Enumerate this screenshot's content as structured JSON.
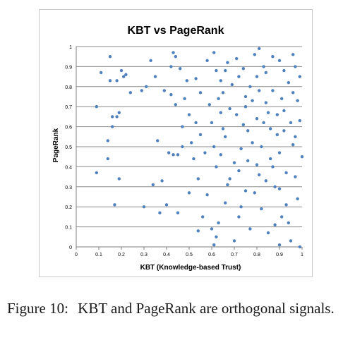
{
  "figure": {
    "caption_label": "Figure 10:",
    "caption_text": "KBT and PageRank are orthogonal signals."
  },
  "chart_data": {
    "type": "scatter",
    "title": "KBT vs PageRank",
    "xlabel": "KBT (Knowledge-based Trust)",
    "ylabel": "PageRank",
    "xlim": [
      0,
      1
    ],
    "ylim": [
      0,
      1
    ],
    "xticks": [
      "0",
      "0.1",
      "0.2",
      "0.3",
      "0.4",
      "0.5",
      "0.6",
      "0.7",
      "0.8",
      "0.9",
      "1"
    ],
    "yticks": [
      "0",
      "0.1",
      "0.2",
      "0.3",
      "0.4",
      "0.5",
      "0.6",
      "0.7",
      "0.8",
      "0.9",
      "1"
    ],
    "grid": "horizontal",
    "legend": "none",
    "marker_color": "#4f81bd",
    "points": [
      [
        0.09,
        0.7
      ],
      [
        0.09,
        0.37
      ],
      [
        0.11,
        0.87
      ],
      [
        0.14,
        0.53
      ],
      [
        0.14,
        0.44
      ],
      [
        0.15,
        0.95
      ],
      [
        0.15,
        0.83
      ],
      [
        0.16,
        0.65
      ],
      [
        0.16,
        0.6
      ],
      [
        0.17,
        0.21
      ],
      [
        0.18,
        0.83
      ],
      [
        0.18,
        0.65
      ],
      [
        0.19,
        0.67
      ],
      [
        0.19,
        0.34
      ],
      [
        0.2,
        0.88
      ],
      [
        0.21,
        0.85
      ],
      [
        0.22,
        0.86
      ],
      [
        0.24,
        0.77
      ],
      [
        0.29,
        0.78
      ],
      [
        0.3,
        0.2
      ],
      [
        0.31,
        0.8
      ],
      [
        0.33,
        0.93
      ],
      [
        0.34,
        0.31
      ],
      [
        0.35,
        0.85
      ],
      [
        0.36,
        0.53
      ],
      [
        0.37,
        0.17
      ],
      [
        0.38,
        0.33
      ],
      [
        0.39,
        0.78
      ],
      [
        0.4,
        0.21
      ],
      [
        0.41,
        0.47
      ],
      [
        0.42,
        0.9
      ],
      [
        0.42,
        0.76
      ],
      [
        0.43,
        0.97
      ],
      [
        0.43,
        0.46
      ],
      [
        0.44,
        0.95
      ],
      [
        0.44,
        0.71
      ],
      [
        0.45,
        0.46
      ],
      [
        0.45,
        0.17
      ],
      [
        0.46,
        0.89
      ],
      [
        0.47,
        0.6
      ],
      [
        0.47,
        0.5
      ],
      [
        0.48,
        0.74
      ],
      [
        0.49,
        0.83
      ],
      [
        0.5,
        0.66
      ],
      [
        0.5,
        0.27
      ],
      [
        0.51,
        0.52
      ],
      [
        0.52,
        0.44
      ],
      [
        0.53,
        0.84
      ],
      [
        0.53,
        0.62
      ],
      [
        0.54,
        0.34
      ],
      [
        0.54,
        0.08
      ],
      [
        0.55,
        0.77
      ],
      [
        0.55,
        0.56
      ],
      [
        0.56,
        0.15
      ],
      [
        0.57,
        0.47
      ],
      [
        0.58,
        0.93
      ],
      [
        0.58,
        0.26
      ],
      [
        0.59,
        0.71
      ],
      [
        0.6,
        0.09
      ],
      [
        0.61,
        0.01
      ],
      [
        0.61,
        0.97
      ],
      [
        0.62,
        0.05
      ],
      [
        0.62,
        0.4
      ],
      [
        0.63,
        0.12
      ],
      [
        0.64,
        0.83
      ],
      [
        0.65,
        0.59
      ],
      [
        0.66,
        0.22
      ],
      [
        0.67,
        0.92
      ],
      [
        0.68,
        0.34
      ],
      [
        0.7,
        0.03
      ],
      [
        0.71,
        0.66
      ],
      [
        0.72,
        0.15
      ],
      [
        0.73,
        0.49
      ],
      [
        0.74,
        0.89
      ],
      [
        0.75,
        0.28
      ],
      [
        0.76,
        0.58
      ],
      [
        0.77,
        0.09
      ],
      [
        0.78,
        0.73
      ],
      [
        0.79,
        0.96
      ],
      [
        0.8,
        0.41
      ],
      [
        0.81,
        0.99
      ],
      [
        0.82,
        0.19
      ],
      [
        0.83,
        0.62
      ],
      [
        0.84,
        0.87
      ],
      [
        0.85,
        0.07
      ],
      [
        0.86,
        0.44
      ],
      [
        0.87,
        0.78
      ],
      [
        0.88,
        0.3
      ],
      [
        0.89,
        0.56
      ],
      [
        0.9,
        0.01
      ],
      [
        0.9,
        0.93
      ],
      [
        0.91,
        0.15
      ],
      [
        0.92,
        0.68
      ],
      [
        0.93,
        0.37
      ],
      [
        0.94,
        0.82
      ],
      [
        0.95,
        0.03
      ],
      [
        0.96,
        0.51
      ],
      [
        0.97,
        0.9
      ],
      [
        0.98,
        0.24
      ],
      [
        0.99,
        0.63
      ],
      [
        0.99,
        0.0
      ],
      [
        1.0,
        0.45
      ],
      [
        0.63,
        0.74
      ],
      [
        0.66,
        0.55
      ],
      [
        0.69,
        0.81
      ],
      [
        0.72,
        0.38
      ],
      [
        0.75,
        0.7
      ],
      [
        0.78,
        0.52
      ],
      [
        0.81,
        0.78
      ],
      [
        0.84,
        0.33
      ],
      [
        0.87,
        0.95
      ],
      [
        0.9,
        0.47
      ],
      [
        0.93,
        0.21
      ],
      [
        0.96,
        0.77
      ],
      [
        0.6,
        0.62
      ],
      [
        0.64,
        0.46
      ],
      [
        0.68,
        0.69
      ],
      [
        0.72,
        0.85
      ],
      [
        0.76,
        0.43
      ],
      [
        0.8,
        0.64
      ],
      [
        0.84,
        0.72
      ],
      [
        0.88,
        0.11
      ],
      [
        0.92,
        0.88
      ],
      [
        0.97,
        0.35
      ],
      [
        0.62,
        0.88
      ],
      [
        0.67,
        0.31
      ],
      [
        0.71,
        0.94
      ],
      [
        0.74,
        0.61
      ],
      [
        0.79,
        0.27
      ],
      [
        0.83,
        0.9
      ],
      [
        0.86,
        0.59
      ],
      [
        0.91,
        0.74
      ],
      [
        0.95,
        0.62
      ],
      [
        0.99,
        0.85
      ],
      [
        0.61,
        0.5
      ],
      [
        0.65,
        0.77
      ],
      [
        0.7,
        0.42
      ],
      [
        0.77,
        0.8
      ],
      [
        0.82,
        0.5
      ],
      [
        0.89,
        0.66
      ],
      [
        0.94,
        0.12
      ],
      [
        0.98,
        0.73
      ],
      [
        0.64,
        0.67
      ],
      [
        0.73,
        0.2
      ],
      [
        0.81,
        0.36
      ],
      [
        0.87,
        0.4
      ],
      [
        0.92,
        0.58
      ],
      [
        0.96,
        0.96
      ],
      [
        0.66,
        0.88
      ],
      [
        0.75,
        0.75
      ],
      [
        0.8,
        0.85
      ],
      [
        0.85,
        0.67
      ],
      [
        0.9,
        0.29
      ],
      [
        0.97,
        0.55
      ]
    ]
  }
}
